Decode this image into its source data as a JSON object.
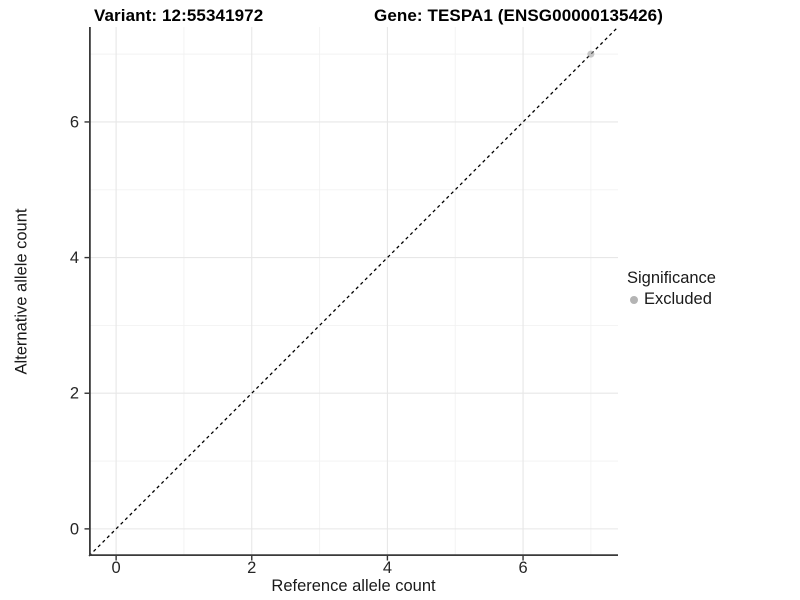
{
  "page": {
    "background": "#ffffff"
  },
  "chart_data": {
    "type": "scatter",
    "titles": [
      "Variant: 12:55341972",
      "Gene: TESPA1 (ENSG00000135426)"
    ],
    "xlabel": "Reference allele count",
    "ylabel": "Alternative allele count",
    "xlim": [
      -0.4,
      7.4
    ],
    "ylim": [
      -0.4,
      7.4
    ],
    "x_ticks": [
      0,
      2,
      4,
      6
    ],
    "y_ticks": [
      0,
      2,
      4,
      6
    ],
    "x_minor_ticks": [
      1,
      3,
      5,
      7
    ],
    "y_minor_ticks": [
      1,
      3,
      5,
      7
    ],
    "grid": "major+minor",
    "reference_line": {
      "equation": "y = x",
      "style": "dashed",
      "color": "#000000"
    },
    "series": [
      {
        "name": "Excluded",
        "points": [
          [
            7,
            7
          ]
        ],
        "color": "#999999",
        "opacity": 0.55
      }
    ],
    "legend": {
      "title": "Significance",
      "position": "right",
      "items": [
        {
          "label": "Excluded",
          "color": "#b4b4b4"
        }
      ]
    }
  },
  "colors": {
    "grid_major": "#e7e7e7",
    "grid_minor": "#f2f2f2",
    "axis_line": "#3a3a3a",
    "tick_mark": "#333333",
    "tick_label": "#262626",
    "title": "#000000"
  }
}
